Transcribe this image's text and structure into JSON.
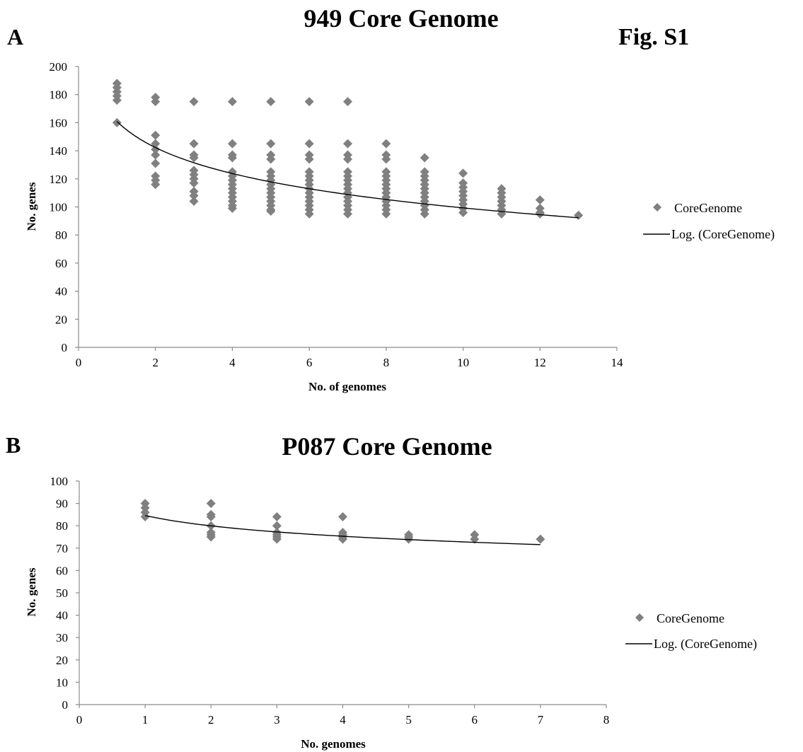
{
  "figure_label": "Fig. S1",
  "chart_data": [
    {
      "panel": "A",
      "type": "scatter",
      "title": "949 Core Genome",
      "xlabel": "No. of genomes",
      "ylabel": "No. genes",
      "xlim": [
        0,
        14
      ],
      "ylim": [
        0,
        200
      ],
      "xticks": [
        0,
        2,
        4,
        6,
        8,
        10,
        12,
        14
      ],
      "yticks": [
        0,
        20,
        40,
        60,
        80,
        100,
        120,
        140,
        160,
        180,
        200
      ],
      "legend_position": "right",
      "series": [
        {
          "name": "CoreGenome",
          "kind": "points",
          "color": "#808080",
          "points": [
            [
              1,
              188
            ],
            [
              1,
              185
            ],
            [
              1,
              182
            ],
            [
              1,
              179
            ],
            [
              1,
              176
            ],
            [
              1,
              160
            ],
            [
              2,
              178
            ],
            [
              2,
              175
            ],
            [
              2,
              151
            ],
            [
              2,
              145
            ],
            [
              2,
              141
            ],
            [
              2,
              137
            ],
            [
              2,
              131
            ],
            [
              2,
              122
            ],
            [
              2,
              119
            ],
            [
              2,
              116
            ],
            [
              3,
              175
            ],
            [
              3,
              145
            ],
            [
              3,
              137
            ],
            [
              3,
              135
            ],
            [
              3,
              126
            ],
            [
              3,
              123
            ],
            [
              3,
              120
            ],
            [
              3,
              117
            ],
            [
              3,
              111
            ],
            [
              3,
              108
            ],
            [
              3,
              104
            ],
            [
              4,
              175
            ],
            [
              4,
              145
            ],
            [
              4,
              137
            ],
            [
              4,
              135
            ],
            [
              4,
              125
            ],
            [
              4,
              122
            ],
            [
              4,
              119
            ],
            [
              4,
              116
            ],
            [
              4,
              113
            ],
            [
              4,
              110
            ],
            [
              4,
              107
            ],
            [
              4,
              104
            ],
            [
              4,
              101
            ],
            [
              4,
              99
            ],
            [
              5,
              175
            ],
            [
              5,
              145
            ],
            [
              5,
              137
            ],
            [
              5,
              134
            ],
            [
              5,
              125
            ],
            [
              5,
              122
            ],
            [
              5,
              119
            ],
            [
              5,
              116
            ],
            [
              5,
              113
            ],
            [
              5,
              110
            ],
            [
              5,
              107
            ],
            [
              5,
              104
            ],
            [
              5,
              101
            ],
            [
              5,
              98
            ],
            [
              5,
              97
            ],
            [
              6,
              175
            ],
            [
              6,
              145
            ],
            [
              6,
              137
            ],
            [
              6,
              134
            ],
            [
              6,
              125
            ],
            [
              6,
              122
            ],
            [
              6,
              119
            ],
            [
              6,
              116
            ],
            [
              6,
              113
            ],
            [
              6,
              110
            ],
            [
              6,
              107
            ],
            [
              6,
              104
            ],
            [
              6,
              101
            ],
            [
              6,
              98
            ],
            [
              6,
              95
            ],
            [
              7,
              175
            ],
            [
              7,
              145
            ],
            [
              7,
              137
            ],
            [
              7,
              134
            ],
            [
              7,
              125
            ],
            [
              7,
              122
            ],
            [
              7,
              119
            ],
            [
              7,
              116
            ],
            [
              7,
              113
            ],
            [
              7,
              110
            ],
            [
              7,
              107
            ],
            [
              7,
              104
            ],
            [
              7,
              101
            ],
            [
              7,
              98
            ],
            [
              7,
              95
            ],
            [
              8,
              145
            ],
            [
              8,
              137
            ],
            [
              8,
              134
            ],
            [
              8,
              125
            ],
            [
              8,
              122
            ],
            [
              8,
              119
            ],
            [
              8,
              116
            ],
            [
              8,
              113
            ],
            [
              8,
              110
            ],
            [
              8,
              107
            ],
            [
              8,
              104
            ],
            [
              8,
              101
            ],
            [
              8,
              98
            ],
            [
              8,
              95
            ],
            [
              9,
              135
            ],
            [
              9,
              125
            ],
            [
              9,
              122
            ],
            [
              9,
              119
            ],
            [
              9,
              116
            ],
            [
              9,
              113
            ],
            [
              9,
              110
            ],
            [
              9,
              107
            ],
            [
              9,
              104
            ],
            [
              9,
              101
            ],
            [
              9,
              98
            ],
            [
              9,
              95
            ],
            [
              10,
              124
            ],
            [
              10,
              117
            ],
            [
              10,
              114
            ],
            [
              10,
              111
            ],
            [
              10,
              108
            ],
            [
              10,
              105
            ],
            [
              10,
              102
            ],
            [
              10,
              99
            ],
            [
              10,
              96
            ],
            [
              11,
              113
            ],
            [
              11,
              110
            ],
            [
              11,
              107
            ],
            [
              11,
              104
            ],
            [
              11,
              101
            ],
            [
              11,
              98
            ],
            [
              11,
              95
            ],
            [
              12,
              105
            ],
            [
              12,
              99
            ],
            [
              12,
              96
            ],
            [
              12,
              95
            ],
            [
              13,
              94
            ]
          ]
        },
        {
          "name": "Log. (CoreGenome)",
          "kind": "log_trendline",
          "color": "#000000",
          "a": -26.7,
          "b": 160.8,
          "x_range": [
            1,
            13
          ]
        }
      ]
    },
    {
      "panel": "B",
      "type": "scatter",
      "title": "P087 Core Genome",
      "xlabel": "No. genomes",
      "ylabel": "No. genes",
      "xlim": [
        0,
        8
      ],
      "ylim": [
        0,
        100
      ],
      "xticks": [
        0,
        1,
        2,
        3,
        4,
        5,
        6,
        7,
        8
      ],
      "yticks": [
        0,
        10,
        20,
        30,
        40,
        50,
        60,
        70,
        80,
        90,
        100
      ],
      "legend_position": "right",
      "series": [
        {
          "name": "CoreGenome",
          "kind": "points",
          "color": "#808080",
          "points": [
            [
              1,
              90
            ],
            [
              1,
              88
            ],
            [
              1,
              86
            ],
            [
              1,
              84
            ],
            [
              2,
              90
            ],
            [
              2,
              85
            ],
            [
              2,
              84
            ],
            [
              2,
              80
            ],
            [
              2,
              77
            ],
            [
              2,
              76
            ],
            [
              2,
              75
            ],
            [
              3,
              84
            ],
            [
              3,
              80
            ],
            [
              3,
              77
            ],
            [
              3,
              76
            ],
            [
              3,
              75
            ],
            [
              3,
              74
            ],
            [
              4,
              84
            ],
            [
              4,
              77
            ],
            [
              4,
              76
            ],
            [
              4,
              75
            ],
            [
              4,
              74
            ],
            [
              5,
              76
            ],
            [
              5,
              75
            ],
            [
              5,
              74
            ],
            [
              6,
              76
            ],
            [
              6,
              74
            ],
            [
              7,
              74
            ]
          ]
        },
        {
          "name": "Log. (CoreGenome)",
          "kind": "log_trendline",
          "color": "#000000",
          "a": -6.7,
          "b": 84.6,
          "x_range": [
            1,
            7
          ]
        }
      ]
    }
  ]
}
